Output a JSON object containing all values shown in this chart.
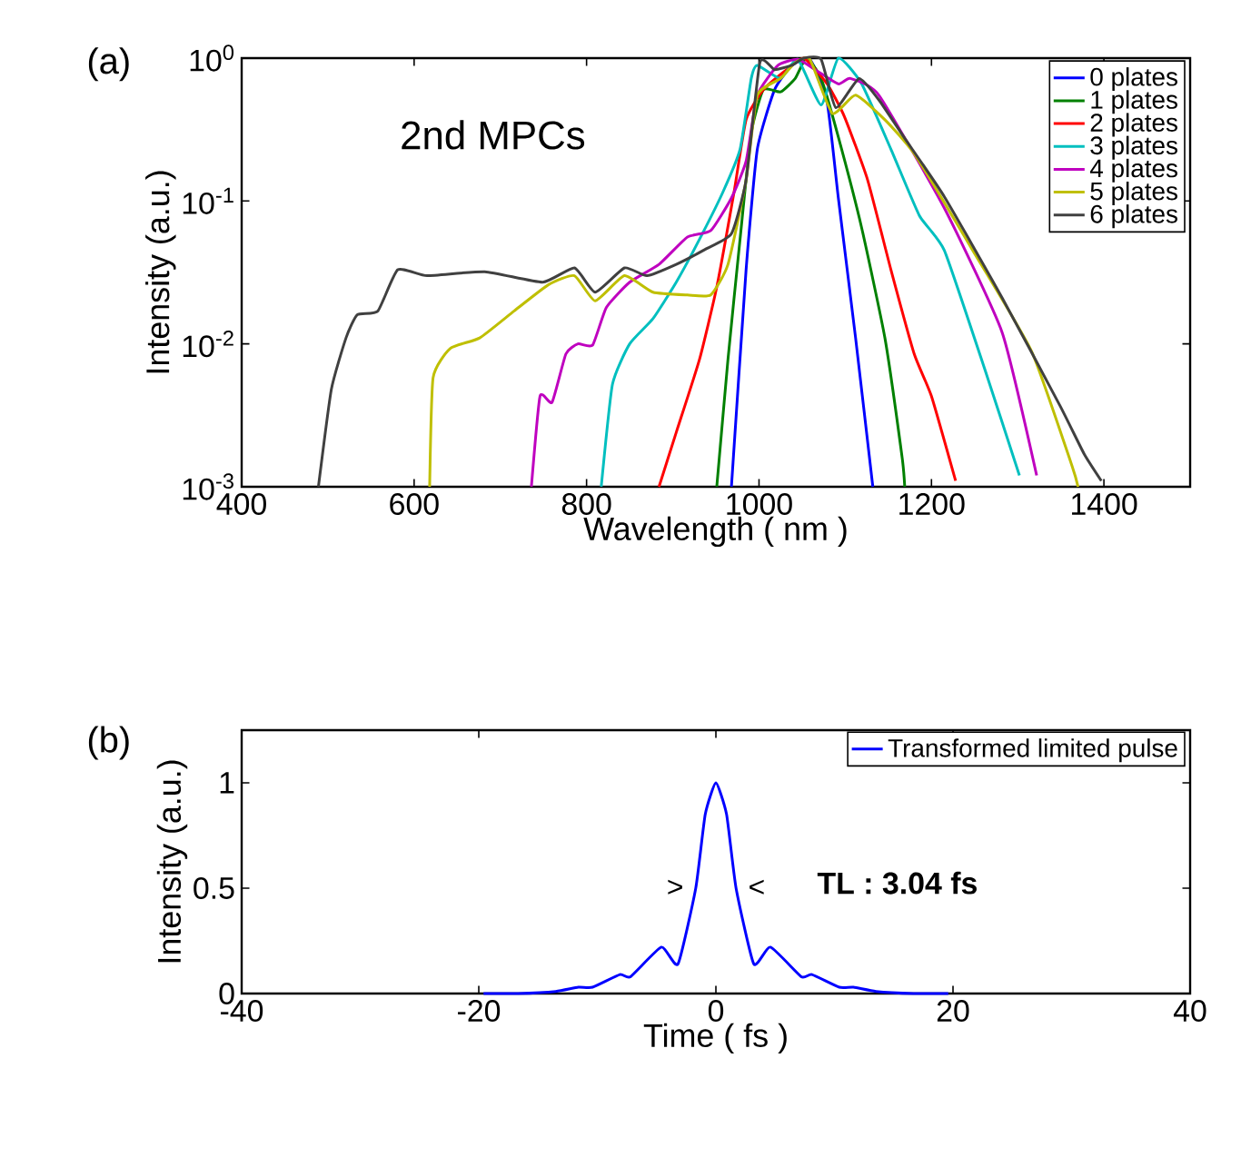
{
  "chart_data": [
    {
      "type": "line",
      "xlabel": "Wavelength ( nm )",
      "ylabel": "Intensity (a.u.)",
      "annotations": [
        "(a)",
        "2nd MPCs"
      ],
      "log": "y",
      "legend": "top right",
      "xlim": [
        400,
        1500
      ],
      "xticks": [
        400,
        600,
        800,
        1000,
        1200,
        1400
      ],
      "ylim": [
        0.001,
        1
      ],
      "yticks": [
        {
          "value": 0.001,
          "label": "10$^{-3}$"
        },
        {
          "value": 0.01,
          "label": "10$^{-2}$"
        },
        {
          "value": 0.1,
          "label": "10$^{-1}$"
        },
        {
          "value": 1,
          "label": "10$^{0}$"
        }
      ],
      "series": [
        {
          "name": "0 plates",
          "color": "#0000ff",
          "x": [
            968,
            985,
            998,
            1018,
            1038,
            1059,
            1079,
            1092,
            1112,
            1132
          ],
          "values": [
            0.001,
            0.033,
            0.23,
            0.6,
            0.89,
            0.98,
            0.49,
            0.105,
            0.011,
            0.001
          ]
        },
        {
          "name": "1 plates",
          "color": "#008000",
          "x": [
            951,
            964,
            978,
            991,
            1005,
            1025,
            1042,
            1055,
            1072,
            1092,
            1119,
            1146,
            1166,
            1169
          ],
          "values": [
            0.001,
            0.0078,
            0.054,
            0.3,
            0.6,
            0.58,
            0.72,
            1,
            0.72,
            0.28,
            0.065,
            0.011,
            0.0016,
            0.001
          ]
        },
        {
          "name": "2 plates",
          "color": "#ff0000",
          "x": [
            884,
            904,
            931,
            951,
            971,
            985,
            1005,
            1032,
            1052,
            1079,
            1099,
            1126,
            1153,
            1180,
            1200,
            1228
          ],
          "values": [
            0.001,
            0.0024,
            0.0078,
            0.025,
            0.115,
            0.37,
            0.6,
            0.83,
            1,
            0.66,
            0.39,
            0.14,
            0.033,
            0.0085,
            0.0043,
            0.0011
          ]
        },
        {
          "name": "3 plates",
          "color": "#00bfbf",
          "x": [
            817,
            830,
            850,
            877,
            904,
            931,
            958,
            978,
            991,
            998,
            1025,
            1045,
            1072,
            1092,
            1119,
            1153,
            1186,
            1215,
            1262,
            1302
          ],
          "values": [
            0.001,
            0.0052,
            0.01,
            0.015,
            0.027,
            0.054,
            0.115,
            0.23,
            0.72,
            0.89,
            0.72,
            0.98,
            0.47,
            1,
            0.66,
            0.23,
            0.079,
            0.045,
            0.0066,
            0.0012
          ]
        },
        {
          "name": "4 plates",
          "color": "#bf00bf",
          "x": [
            736,
            746,
            760,
            776,
            790,
            807,
            823,
            850,
            884,
            917,
            944,
            968,
            985,
            998,
            1022,
            1045,
            1065,
            1092,
            1106,
            1139,
            1215,
            1282,
            1322
          ],
          "values": [
            0.001,
            0.0043,
            0.0039,
            0.0085,
            0.01,
            0.0098,
            0.018,
            0.027,
            0.036,
            0.056,
            0.062,
            0.105,
            0.19,
            0.55,
            0.89,
            0.98,
            0.83,
            0.66,
            0.72,
            0.55,
            0.089,
            0.012,
            0.0012
          ]
        },
        {
          "name": "5 plates",
          "color": "#bfbf00",
          "x": [
            618,
            622,
            642,
            676,
            716,
            756,
            786,
            810,
            844,
            877,
            917,
            944,
            964,
            985,
            998,
            1025,
            1042,
            1059,
            1085,
            1112,
            1146,
            1181,
            1248,
            1316,
            1363,
            1370
          ],
          "values": [
            0.001,
            0.0058,
            0.0093,
            0.011,
            0.017,
            0.026,
            0.03,
            0.02,
            0.03,
            0.023,
            0.022,
            0.022,
            0.036,
            0.14,
            0.55,
            0.72,
            0.93,
            0.98,
            0.41,
            0.55,
            0.37,
            0.21,
            0.045,
            0.0089,
            0.0014,
            0.001
          ]
        },
        {
          "name": "6 plates",
          "color": "#404040",
          "x": [
            489,
            504,
            521,
            534,
            558,
            581,
            615,
            682,
            749,
            786,
            810,
            844,
            870,
            904,
            938,
            968,
            985,
            1001,
            1018,
            1038,
            1052,
            1072,
            1089,
            1116,
            1139,
            1168,
            1215,
            1282,
            1349,
            1377,
            1397
          ],
          "values": [
            0.001,
            0.0048,
            0.011,
            0.016,
            0.017,
            0.033,
            0.03,
            0.032,
            0.027,
            0.034,
            0.023,
            0.034,
            0.03,
            0.036,
            0.046,
            0.059,
            0.14,
            0.93,
            0.83,
            0.89,
            1,
            0.98,
            0.45,
            0.72,
            0.51,
            0.28,
            0.107,
            0.021,
            0.0037,
            0.0017,
            0.0011
          ]
        }
      ]
    },
    {
      "type": "line",
      "xlabel": "Time ( fs )",
      "ylabel": "Intensity (a.u.)",
      "annotations": [
        "(b)",
        ">",
        "<",
        "**TL :  3.04 fs**"
      ],
      "legend": "top right",
      "xlim": [
        -40,
        40
      ],
      "xticks": [
        -40,
        -20,
        0,
        20,
        40
      ],
      "ylim": [
        0,
        1.25
      ],
      "yticks": [
        0,
        0.5,
        1
      ],
      "series": [
        {
          "name": "Transformed limited pulse",
          "color": "#0000ff",
          "x": [
            -19.6,
            -16.7,
            -13.5,
            -11.6,
            -10.4,
            -8.1,
            -7.2,
            -4.6,
            -3.2,
            -1.7,
            -0.9,
            0,
            0.9,
            1.7,
            3.2,
            4.6,
            7.2,
            8.1,
            10.4,
            11.6,
            13.5,
            16.7,
            19.6
          ],
          "values": [
            0,
            0,
            0.01,
            0.03,
            0.03,
            0.09,
            0.08,
            0.22,
            0.14,
            0.5,
            0.85,
            1,
            0.85,
            0.5,
            0.14,
            0.22,
            0.08,
            0.09,
            0.03,
            0.03,
            0.01,
            0,
            0
          ]
        }
      ]
    }
  ]
}
